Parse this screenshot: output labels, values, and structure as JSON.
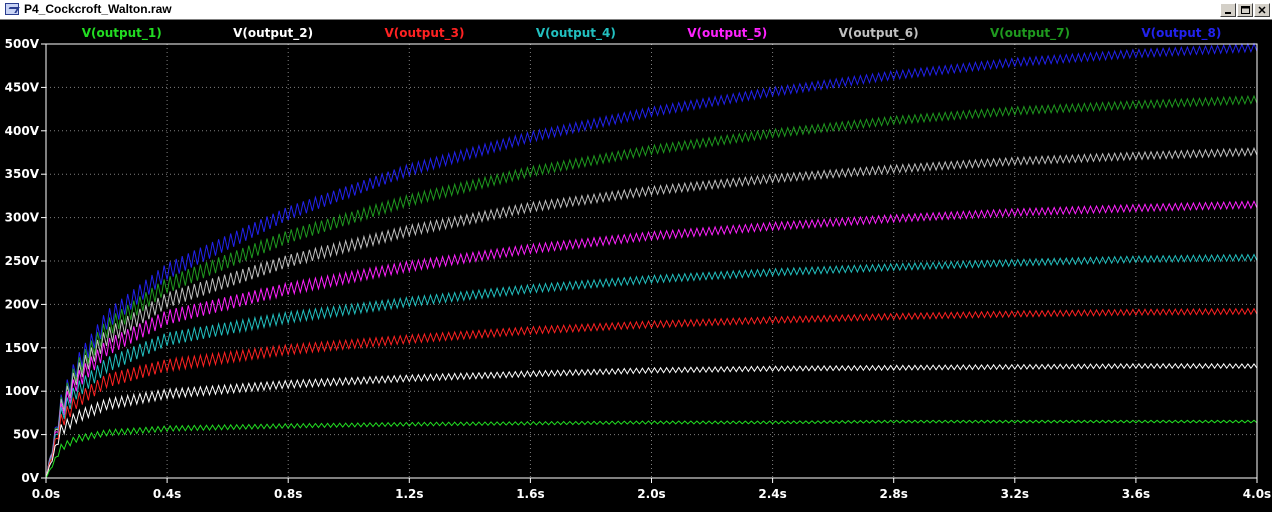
{
  "window": {
    "title": "P4_Cockcroft_Walton.raw",
    "buttons": {
      "minimize": "_",
      "maximize": "□",
      "close": "×"
    }
  },
  "colors": {
    "background": "#000000",
    "axis": "#ffffff",
    "grid": "#808080"
  },
  "chart_data": {
    "type": "line",
    "xlabel": "",
    "ylabel": "",
    "xlim": [
      0,
      4.0
    ],
    "ylim": [
      0,
      500
    ],
    "grid": true,
    "legend_position": "top",
    "x_ticks": [
      0.0,
      0.4,
      0.8,
      1.2,
      1.6,
      2.0,
      2.4,
      2.8,
      3.2,
      3.6,
      4.0
    ],
    "x_tick_labels": [
      "0.0s",
      "0.4s",
      "0.8s",
      "1.2s",
      "1.6s",
      "2.0s",
      "2.4s",
      "2.8s",
      "3.2s",
      "3.6s",
      "4.0s"
    ],
    "y_ticks": [
      0,
      50,
      100,
      150,
      200,
      250,
      300,
      350,
      400,
      450,
      500
    ],
    "y_tick_labels": [
      "0V",
      "50V",
      "100V",
      "150V",
      "200V",
      "250V",
      "300V",
      "350V",
      "400V",
      "450V",
      "500V"
    ],
    "x": [
      0.0,
      0.05,
      0.1,
      0.2,
      0.4,
      0.8,
      1.2,
      1.6,
      2.0,
      2.4,
      2.8,
      3.2,
      3.6,
      4.0
    ],
    "series": [
      {
        "name": "V(output_1)",
        "color": "#22dd22",
        "ripple": 8,
        "values": [
          0,
          35,
          45,
          52,
          57,
          60,
          62,
          63,
          64,
          64,
          65,
          65,
          65,
          65
        ]
      },
      {
        "name": "V(output_2)",
        "color": "#ffffff",
        "ripple": 14,
        "values": [
          0,
          55,
          70,
          85,
          97,
          108,
          115,
          120,
          124,
          126,
          127,
          128,
          129,
          129
        ]
      },
      {
        "name": "V(output_3)",
        "color": "#ff2222",
        "ripple": 18,
        "values": [
          0,
          65,
          88,
          112,
          130,
          148,
          160,
          170,
          177,
          182,
          186,
          189,
          191,
          192
        ]
      },
      {
        "name": "V(output_4)",
        "color": "#22c0c0",
        "ripple": 20,
        "values": [
          0,
          72,
          100,
          130,
          160,
          185,
          203,
          218,
          229,
          237,
          243,
          248,
          252,
          254
        ]
      },
      {
        "name": "V(output_5)",
        "color": "#ff22ff",
        "ripple": 22,
        "values": [
          0,
          76,
          110,
          150,
          185,
          218,
          244,
          264,
          279,
          290,
          299,
          306,
          311,
          315
        ]
      },
      {
        "name": "V(output_6)",
        "color": "#c0c0c0",
        "ripple": 23,
        "values": [
          0,
          80,
          118,
          162,
          205,
          250,
          285,
          312,
          331,
          345,
          356,
          365,
          371,
          376
        ]
      },
      {
        "name": "V(output_7)",
        "color": "#1f9a1f",
        "ripple": 24,
        "values": [
          0,
          82,
          123,
          172,
          222,
          278,
          320,
          353,
          378,
          397,
          412,
          423,
          430,
          436
        ]
      },
      {
        "name": "V(output_8)",
        "color": "#2222ee",
        "ripple": 25,
        "values": [
          0,
          84,
          128,
          182,
          238,
          305,
          355,
          393,
          422,
          445,
          464,
          479,
          489,
          496
        ]
      }
    ]
  }
}
